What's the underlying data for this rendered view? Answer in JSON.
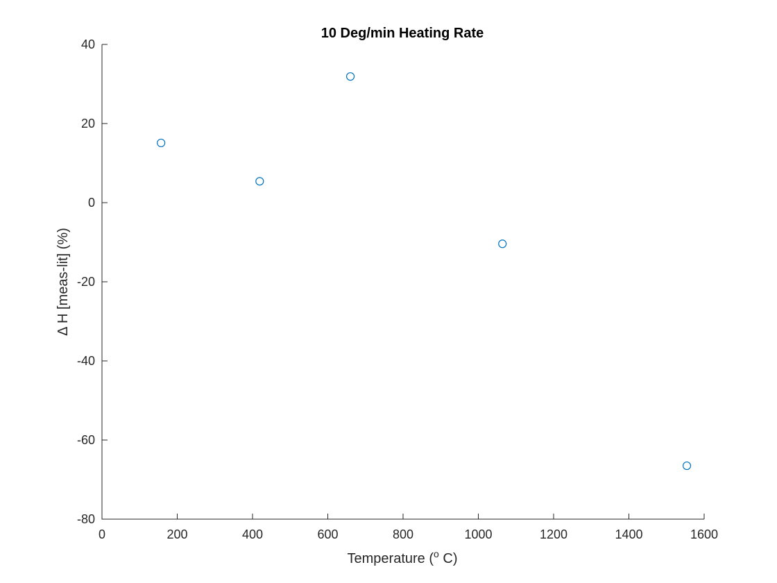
{
  "chart_data": {
    "type": "scatter",
    "title": "10 Deg/min Heating Rate",
    "xlabel": {
      "prefix": "Temperature (",
      "superscript": "o",
      "suffix": " C)"
    },
    "ylabel": "Δ H [meas-lit] (%)",
    "xlim": [
      0,
      1600
    ],
    "ylim": [
      -80,
      40
    ],
    "xticks": [
      0,
      200,
      400,
      600,
      800,
      1000,
      1200,
      1400,
      1600
    ],
    "yticks": [
      -80,
      -60,
      -40,
      -20,
      0,
      20,
      40
    ],
    "grid": false,
    "marker_color": "#0072BD",
    "series": [
      {
        "x": [
          157,
          419,
          660,
          1064,
          1554
        ],
        "y": [
          15.1,
          5.4,
          31.9,
          -10.4,
          -66.5
        ]
      }
    ]
  }
}
